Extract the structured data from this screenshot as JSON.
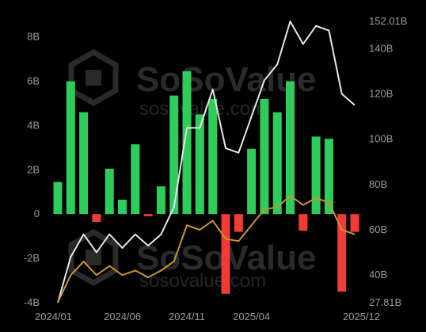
{
  "chart_data": {
    "type": "bar+line",
    "title": "",
    "watermark": {
      "brand": "SoSoValue",
      "url": "sosovalue.com"
    },
    "left_axis": {
      "ticks": [
        "8B",
        "6B",
        "4B",
        "2B",
        "0",
        "-2B",
        "-4B"
      ],
      "tick_values": [
        8,
        6,
        4,
        2,
        0,
        -2,
        -4
      ],
      "range": [
        -4,
        8.7
      ]
    },
    "right_axis": {
      "ticks": [
        "152.01B",
        "140B",
        "120B",
        "100B",
        "80B",
        "60B",
        "40B",
        "27.81B"
      ],
      "tick_values": [
        152.01,
        140,
        120,
        100,
        80,
        60,
        40,
        27.81
      ],
      "range": [
        27.81,
        152.01
      ]
    },
    "x_axis": {
      "labels": [
        "2024/01",
        "2024/06",
        "2024/11",
        "2025/04",
        "2025/12"
      ],
      "label_index": [
        0,
        5,
        10,
        15,
        22
      ]
    },
    "colors": {
      "positive": "#2ecc5a",
      "negative": "#f23b36",
      "total": "#e6e6e6",
      "price": "#c9962a",
      "tick": "#9a9a9a"
    },
    "series": [
      {
        "type": "bar",
        "values": [
          1.45,
          6.0,
          4.6,
          -0.35,
          2.05,
          0.65,
          3.15,
          -0.1,
          1.25,
          5.35,
          6.45,
          4.5,
          5.2,
          -3.6,
          -0.8,
          2.95,
          5.2,
          4.6,
          6.0,
          -0.75,
          3.5,
          3.4,
          -3.5,
          -0.8
        ]
      },
      {
        "type": "line",
        "axis": "right",
        "values": [
          27.81,
          48,
          58,
          50,
          58,
          52,
          58,
          53,
          58,
          70,
          105,
          105,
          122,
          96,
          94,
          110,
          126,
          133,
          152,
          142,
          150,
          148,
          120,
          115
        ]
      },
      {
        "type": "line",
        "axis": "right",
        "values": [
          28,
          40,
          46,
          40,
          44,
          40,
          42,
          39,
          42,
          46,
          62,
          60,
          64,
          56,
          55,
          62,
          69,
          70,
          75,
          71,
          74,
          72,
          60,
          58
        ]
      }
    ]
  }
}
